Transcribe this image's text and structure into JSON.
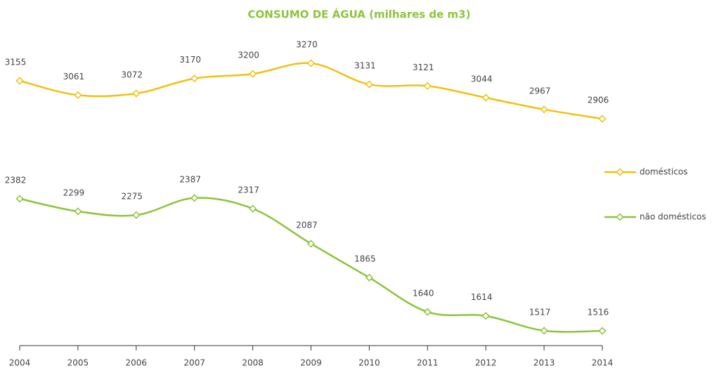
{
  "chart_data": {
    "type": "line",
    "title": "CONSUMO DE ÁGUA (milhares de m3)",
    "categories": [
      "2004",
      "2005",
      "2006",
      "2007",
      "2008",
      "2009",
      "2010",
      "2011",
      "2012",
      "2013",
      "2014"
    ],
    "series": [
      {
        "name": "domésticos",
        "color": "#f2c00f",
        "values": [
          3155,
          3061,
          3072,
          3170,
          3200,
          3270,
          3131,
          3121,
          3044,
          2967,
          2906
        ]
      },
      {
        "name": "não domésticos",
        "color": "#8cc43c",
        "values": [
          2382,
          2299,
          2275,
          2387,
          2317,
          2087,
          1865,
          1640,
          1614,
          1517,
          1516
        ]
      }
    ],
    "legend": "right"
  }
}
